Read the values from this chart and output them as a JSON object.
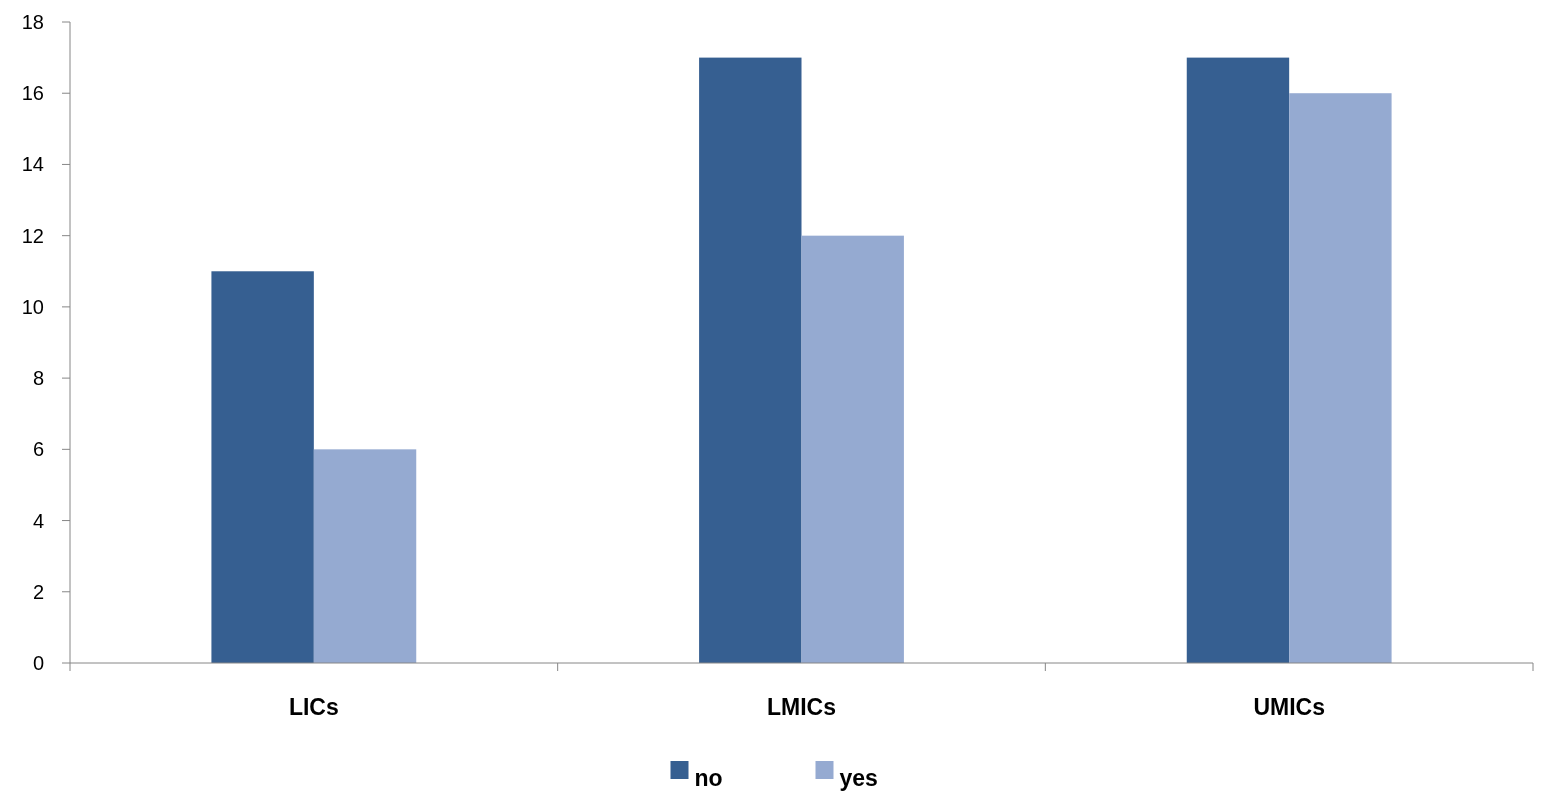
{
  "chart_data": {
    "type": "bar",
    "categories": [
      "LICs",
      "LMICs",
      "UMICs"
    ],
    "series": [
      {
        "name": "no",
        "color": "#365f91",
        "values": [
          11,
          17,
          17
        ]
      },
      {
        "name": "yes",
        "color": "#95aad1",
        "values": [
          6,
          12,
          16
        ]
      }
    ],
    "ylim": [
      0,
      18
    ],
    "yticks": [
      0,
      2,
      4,
      6,
      8,
      10,
      12,
      14,
      16,
      18
    ],
    "grid": false,
    "legend": "bottom"
  }
}
